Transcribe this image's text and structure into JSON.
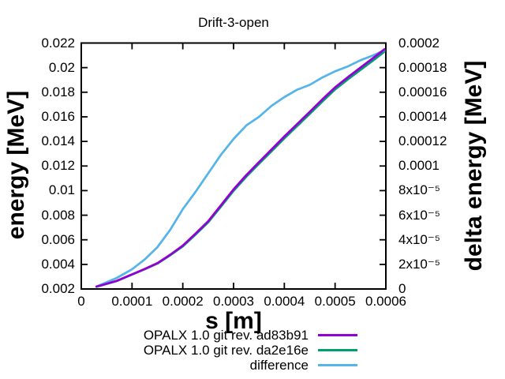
{
  "chart_data": {
    "type": "line",
    "title": "Drift-3-open",
    "xlabel": "s [m]",
    "ylabel_left": "energy [MeV]",
    "ylabel_right": "delta energy [MeV]",
    "grid": false,
    "legend_position": "below-right",
    "x_range": [
      0,
      0.0006
    ],
    "y_left_range": [
      0.002,
      0.022
    ],
    "y_right_range": [
      0,
      0.0002
    ],
    "x_tick_values": [
      0,
      0.0001,
      0.0002,
      0.0003,
      0.0004,
      0.0005,
      0.0006
    ],
    "x_tick_labels": [
      "0",
      "0.0001",
      "0.0002",
      "0.0003",
      "0.0004",
      "0.0005",
      "0.0006"
    ],
    "y_left_tick_values": [
      0.002,
      0.004,
      0.006,
      0.008,
      0.01,
      0.012,
      0.014,
      0.016,
      0.018,
      0.02,
      0.022
    ],
    "y_left_tick_labels": [
      "0.002",
      "0.004",
      "0.006",
      "0.008",
      "0.01",
      "0.012",
      "0.014",
      "0.016",
      "0.018",
      "0.02",
      "0.022"
    ],
    "y_right_tick_values": [
      0,
      2e-05,
      4e-05,
      6e-05,
      8e-05,
      0.0001,
      0.00012,
      0.00014,
      0.00016,
      0.00018,
      0.0002
    ],
    "y_right_tick_labels": [
      "0",
      "2x10⁻⁵",
      "4x10⁻⁵",
      "6x10⁻⁵",
      "8x10⁻⁵",
      "0.0001",
      "0.00012",
      "0.00014",
      "0.00016",
      "0.00018",
      "0.0002"
    ],
    "x": [
      3e-05,
      7e-05,
      0.0001,
      0.000125,
      0.00015,
      0.000175,
      0.0002,
      0.000225,
      0.00025,
      0.000275,
      0.0003,
      0.000325,
      0.00035,
      0.000375,
      0.0004,
      0.000425,
      0.00045,
      0.000475,
      0.0005,
      0.000525,
      0.00055,
      0.000575,
      0.000597
    ],
    "series": [
      {
        "name": "OPALX 1.0 git rev. ad83b91",
        "color": "#9400d3",
        "axis": "left",
        "values": [
          0.00219,
          0.00266,
          0.00319,
          0.00363,
          0.0041,
          0.00478,
          0.00553,
          0.0065,
          0.00751,
          0.0088,
          0.0101,
          0.01126,
          0.01232,
          0.01336,
          0.0144,
          0.0154,
          0.0164,
          0.01742,
          0.0184,
          0.01922,
          0.02,
          0.02078,
          0.021486
        ]
      },
      {
        "name": "OPALX 1.0 git rev. da2e16e",
        "color": "#009e73",
        "axis": "left",
        "values": [
          0.002188,
          0.002651,
          0.003174,
          0.003606,
          0.004066,
          0.004732,
          0.005465,
          0.006421,
          0.007416,
          0.008691,
          0.009978,
          0.011127,
          0.01218,
          0.013211,
          0.014244,
          0.015238,
          0.016234,
          0.017248,
          0.018223,
          0.019039,
          0.019814,
          0.02059,
          0.021292
        ]
      },
      {
        "name": "difference",
        "color": "#56b4e9",
        "axis": "right",
        "values": [
          2e-06,
          9e-06,
          1.6e-05,
          2.4e-05,
          3.4e-05,
          4.8e-05,
          6.5e-05,
          7.9e-05,
          9.4e-05,
          0.000109,
          0.000122,
          0.000133,
          0.00014,
          0.000149,
          0.000156,
          0.000162,
          0.000166,
          0.000172,
          0.000177,
          0.000181,
          0.000186,
          0.00019,
          0.000194
        ]
      }
    ],
    "colors": {
      "background": "#ffffff",
      "border": "#000000",
      "text": "#000000"
    }
  }
}
